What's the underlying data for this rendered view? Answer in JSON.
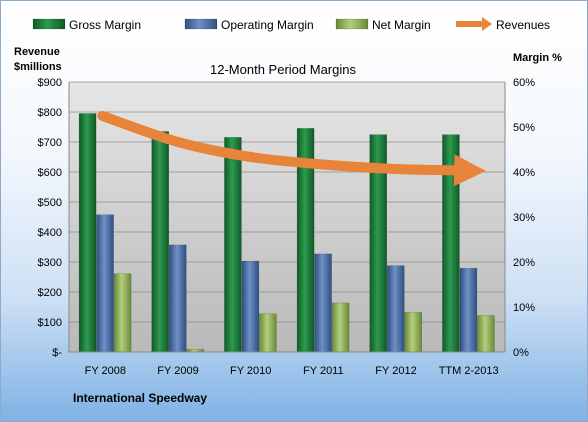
{
  "chart_data": {
    "type": "bar",
    "title": "12-Month Period Margins",
    "footer": "International Speedway",
    "ylabel_left": [
      "Revenue",
      "$millions"
    ],
    "ylabel_right": "Margin %",
    "categories": [
      "FY 2008",
      "FY 2009",
      "FY 2010",
      "FY 2011",
      "FY 2012",
      "TTM 2-2013"
    ],
    "left_axis": {
      "ylim": [
        0,
        900
      ],
      "ticks": [
        0,
        100,
        200,
        300,
        400,
        500,
        600,
        700,
        800,
        900
      ],
      "tick_labels": [
        "$-",
        "$100",
        "$200",
        "$300",
        "$400",
        "$500",
        "$600",
        "$700",
        "$800",
        "$900"
      ]
    },
    "right_axis": {
      "ylim": [
        0,
        60
      ],
      "ticks": [
        0,
        10,
        20,
        30,
        40,
        50,
        60
      ],
      "tick_labels": [
        "0%",
        "10%",
        "20%",
        "30%",
        "40%",
        "50%",
        "60%"
      ]
    },
    "series": [
      {
        "name": "Gross Margin",
        "axis": "right",
        "color": "#1e7a3c",
        "values": [
          53,
          49,
          47.7,
          49.7,
          48.3,
          48.3
        ]
      },
      {
        "name": "Operating Margin",
        "axis": "right",
        "color": "#4a6fa5",
        "values": [
          30.5,
          23.8,
          20.2,
          21.8,
          19.2,
          18.6
        ]
      },
      {
        "name": "Net Margin",
        "axis": "right",
        "color": "#8fb05a",
        "values": [
          17.4,
          0.6,
          8.5,
          10.9,
          8.8,
          8.1
        ]
      },
      {
        "name": "Revenues",
        "axis": "left",
        "type": "line",
        "color": "#e8833a",
        "values": [
          787,
          700,
          650,
          625,
          610,
          605
        ]
      }
    ],
    "grid": true,
    "legend": "top"
  }
}
